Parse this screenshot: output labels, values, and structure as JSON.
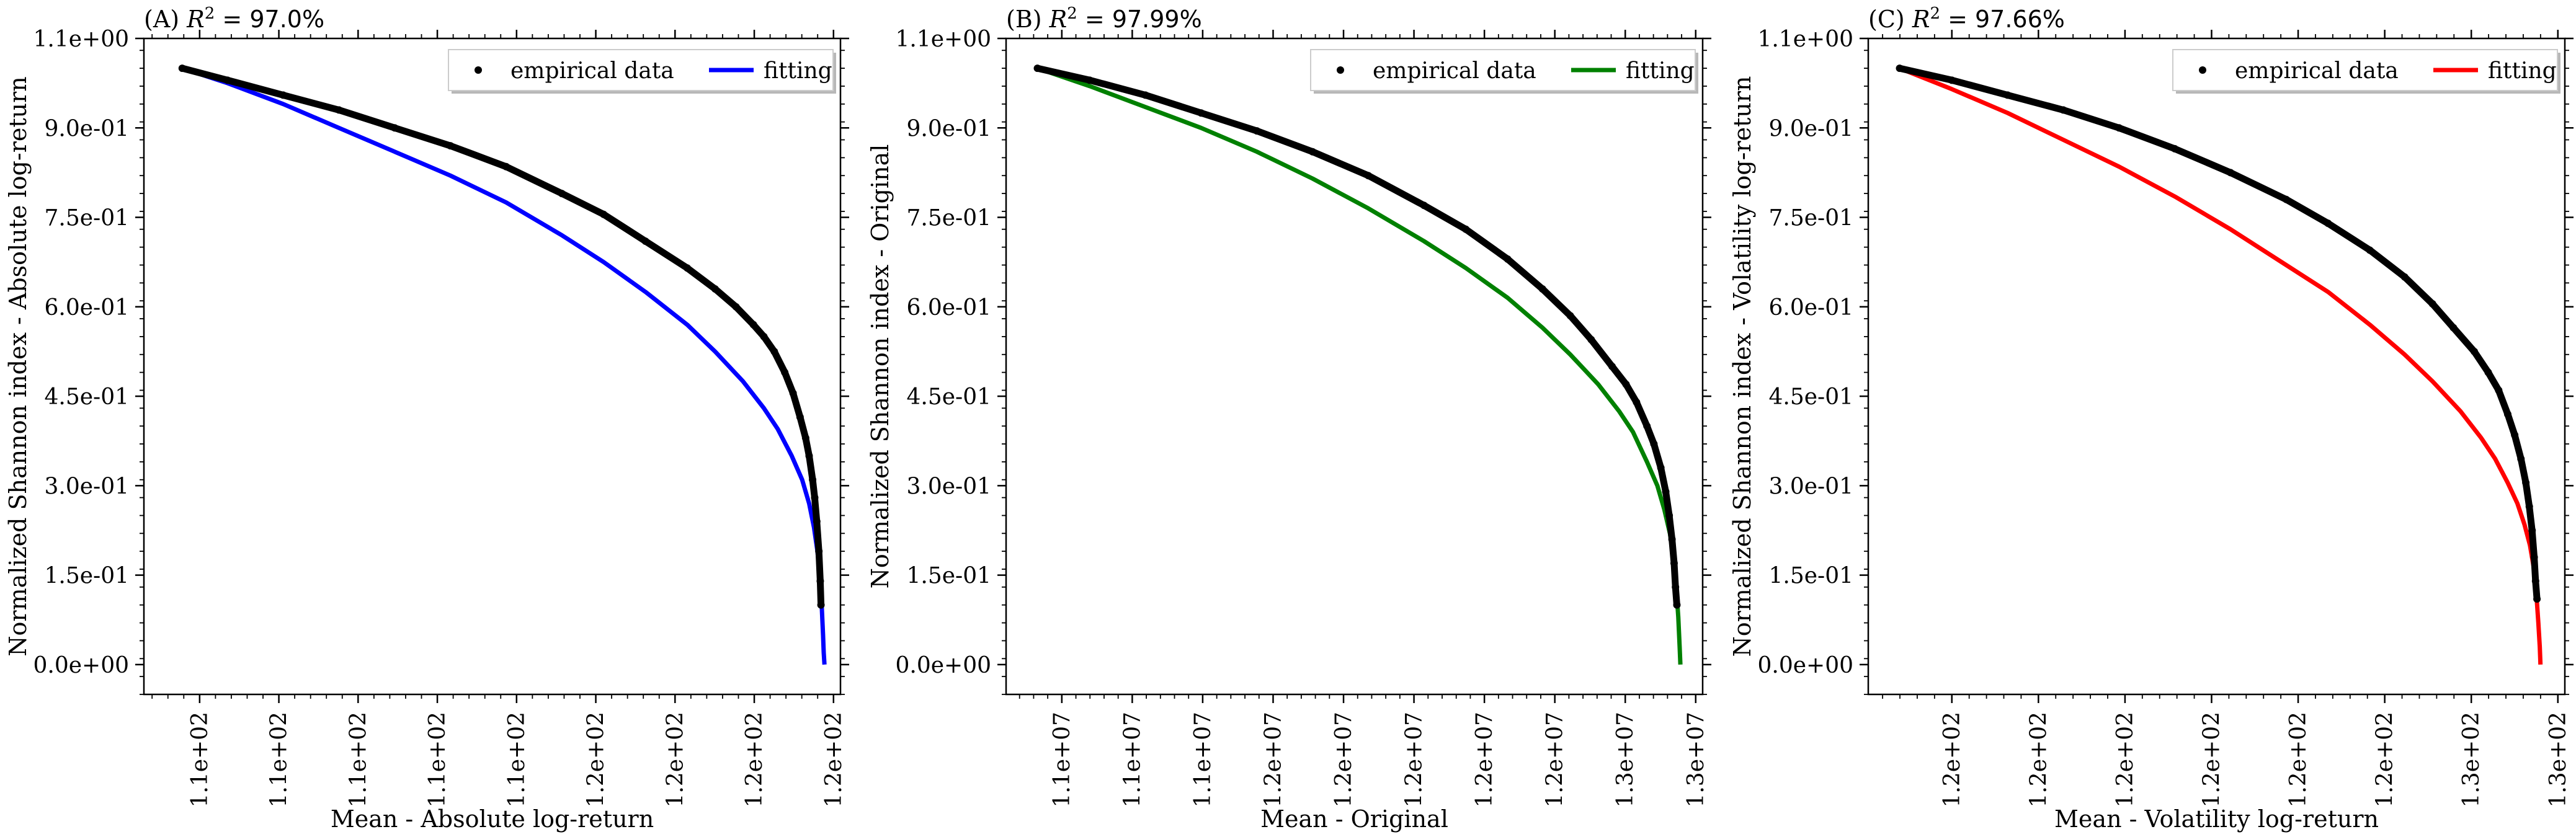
{
  "chart_data": [
    {
      "type": "line",
      "panel": "(A)",
      "r2_text": "97.0%",
      "xlabel": "Mean - Absolute log-return",
      "ylabel": "Normalized Shannon index - Absolute log-return",
      "x_ticks": [
        "1.1e+02",
        "1.1e+02",
        "1.1e+02",
        "1.1e+02",
        "1.1e+02",
        "1.2e+02",
        "1.2e+02",
        "1.2e+02",
        "1.2e+02"
      ],
      "y_ticks": [
        "0.0e+00",
        "1.5e-01",
        "3.0e-01",
        "4.5e-01",
        "6.0e-01",
        "7.5e-01",
        "9.0e-01",
        "1.1e+00"
      ],
      "xlim": [
        0,
        1
      ],
      "ylim": [
        -0.05,
        1.05
      ],
      "fit_color": "#0000ff",
      "legend": {
        "data": "empirical data",
        "fit": "fitting",
        "placement": "top-right"
      },
      "series": [
        {
          "name": "empirical data",
          "x": [
            0.055,
            0.12,
            0.2,
            0.28,
            0.36,
            0.44,
            0.52,
            0.6,
            0.66,
            0.72,
            0.78,
            0.82,
            0.85,
            0.875,
            0.89,
            0.905,
            0.92,
            0.932,
            0.942,
            0.95,
            0.955,
            0.96,
            0.963,
            0.966,
            0.969,
            0.971,
            0.972
          ],
          "y": [
            1.0,
            0.98,
            0.955,
            0.93,
            0.9,
            0.87,
            0.835,
            0.79,
            0.755,
            0.71,
            0.665,
            0.63,
            0.6,
            0.57,
            0.55,
            0.525,
            0.49,
            0.455,
            0.415,
            0.38,
            0.35,
            0.31,
            0.28,
            0.24,
            0.19,
            0.14,
            0.1
          ]
        },
        {
          "name": "fitting",
          "x": [
            0.055,
            0.12,
            0.2,
            0.28,
            0.36,
            0.44,
            0.52,
            0.6,
            0.66,
            0.72,
            0.78,
            0.82,
            0.86,
            0.89,
            0.91,
            0.93,
            0.945,
            0.955,
            0.962,
            0.967,
            0.971,
            0.973,
            0.975,
            0.976,
            0.977
          ],
          "y": [
            1.0,
            0.975,
            0.94,
            0.9,
            0.86,
            0.82,
            0.775,
            0.72,
            0.675,
            0.625,
            0.57,
            0.525,
            0.475,
            0.43,
            0.395,
            0.35,
            0.31,
            0.27,
            0.23,
            0.19,
            0.14,
            0.1,
            0.05,
            0.02,
            0.0
          ]
        }
      ]
    },
    {
      "type": "line",
      "panel": "(B)",
      "r2_text": "97.99%",
      "xlabel": "Mean - Original",
      "ylabel": "Normalized Shannon index - Original",
      "x_ticks": [
        "1.1e+07",
        "1.1e+07",
        "1.1e+07",
        "1.2e+07",
        "1.2e+07",
        "1.2e+07",
        "1.2e+07",
        "1.2e+07",
        "1.3e+07",
        "1.3e+07"
      ],
      "y_ticks": [
        "0.0e+00",
        "1.5e-01",
        "3.0e-01",
        "4.5e-01",
        "6.0e-01",
        "7.5e-01",
        "9.0e-01",
        "1.1e+00"
      ],
      "xlim": [
        0,
        1
      ],
      "ylim": [
        -0.05,
        1.05
      ],
      "fit_color": "#008000",
      "legend": {
        "data": "empirical data",
        "fit": "fitting",
        "placement": "top-right"
      },
      "series": [
        {
          "name": "empirical data",
          "x": [
            0.045,
            0.12,
            0.2,
            0.28,
            0.36,
            0.44,
            0.52,
            0.6,
            0.66,
            0.72,
            0.77,
            0.81,
            0.84,
            0.87,
            0.89,
            0.905,
            0.92,
            0.93,
            0.94,
            0.947,
            0.952,
            0.956,
            0.959,
            0.961,
            0.963
          ],
          "y": [
            1.0,
            0.98,
            0.955,
            0.925,
            0.895,
            0.86,
            0.82,
            0.77,
            0.73,
            0.68,
            0.63,
            0.585,
            0.545,
            0.5,
            0.47,
            0.44,
            0.4,
            0.37,
            0.33,
            0.29,
            0.25,
            0.21,
            0.17,
            0.13,
            0.1
          ]
        },
        {
          "name": "fitting",
          "x": [
            0.045,
            0.12,
            0.2,
            0.28,
            0.36,
            0.44,
            0.52,
            0.6,
            0.66,
            0.72,
            0.77,
            0.81,
            0.85,
            0.88,
            0.9,
            0.92,
            0.935,
            0.945,
            0.953,
            0.958,
            0.962,
            0.965,
            0.967,
            0.968
          ],
          "y": [
            1.0,
            0.97,
            0.935,
            0.9,
            0.86,
            0.815,
            0.765,
            0.71,
            0.665,
            0.615,
            0.565,
            0.52,
            0.47,
            0.425,
            0.39,
            0.34,
            0.3,
            0.26,
            0.22,
            0.18,
            0.13,
            0.08,
            0.03,
            0.0
          ]
        }
      ]
    },
    {
      "type": "line",
      "panel": "(C)",
      "r2_text": "97.66%",
      "xlabel": "Mean - Volatility log-return",
      "ylabel": "Normalized Shannon index - Volatility log-return",
      "x_ticks": [
        "1.2e+02",
        "1.2e+02",
        "1.2e+02",
        "1.2e+02",
        "1.2e+02",
        "1.2e+02",
        "1.3e+02",
        "1.3e+02"
      ],
      "y_ticks": [
        "0.0e+00",
        "1.5e-01",
        "3.0e-01",
        "4.5e-01",
        "6.0e-01",
        "7.5e-01",
        "9.0e-01",
        "1.1e+00"
      ],
      "xlim": [
        0,
        1
      ],
      "ylim": [
        -0.05,
        1.05
      ],
      "fit_color": "#ff0000",
      "legend": {
        "data": "empirical data",
        "fit": "fitting",
        "placement": "top-right"
      },
      "series": [
        {
          "name": "empirical data",
          "x": [
            0.045,
            0.12,
            0.2,
            0.28,
            0.36,
            0.44,
            0.52,
            0.6,
            0.66,
            0.72,
            0.77,
            0.81,
            0.84,
            0.87,
            0.89,
            0.905,
            0.918,
            0.928,
            0.937,
            0.944,
            0.949,
            0.953,
            0.956,
            0.958,
            0.96
          ],
          "y": [
            1.0,
            0.98,
            0.955,
            0.93,
            0.9,
            0.865,
            0.825,
            0.78,
            0.74,
            0.695,
            0.65,
            0.605,
            0.565,
            0.525,
            0.49,
            0.46,
            0.42,
            0.385,
            0.345,
            0.305,
            0.265,
            0.225,
            0.18,
            0.14,
            0.11
          ]
        },
        {
          "name": "fitting",
          "x": [
            0.045,
            0.12,
            0.2,
            0.28,
            0.36,
            0.44,
            0.52,
            0.6,
            0.66,
            0.72,
            0.77,
            0.81,
            0.85,
            0.88,
            0.9,
            0.918,
            0.932,
            0.942,
            0.95,
            0.955,
            0.959,
            0.962,
            0.964,
            0.965
          ],
          "y": [
            1.0,
            0.965,
            0.925,
            0.88,
            0.835,
            0.785,
            0.73,
            0.67,
            0.625,
            0.57,
            0.52,
            0.475,
            0.425,
            0.38,
            0.345,
            0.305,
            0.27,
            0.235,
            0.2,
            0.165,
            0.12,
            0.07,
            0.03,
            0.0
          ]
        }
      ]
    }
  ]
}
